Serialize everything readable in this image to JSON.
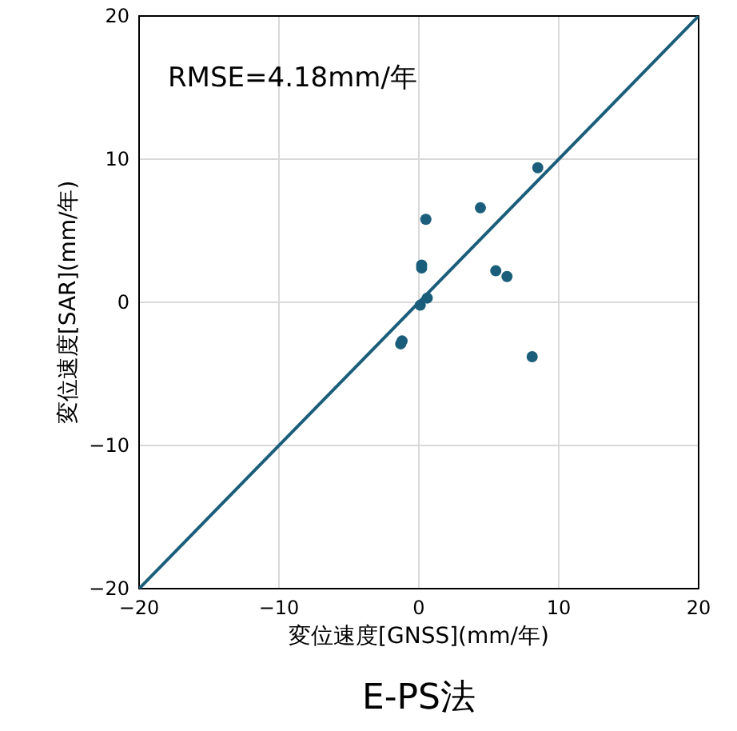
{
  "chart_data": {
    "type": "scatter",
    "title": "E-PS法",
    "xlabel": "変位速度[GNSS](mm/年)",
    "ylabel": "変位速度[SAR](mm/年)",
    "annotations": [
      "RMSE=4.18mm/年"
    ],
    "xlim": [
      -20,
      20
    ],
    "ylim": [
      -20,
      20
    ],
    "xticks": [
      {
        "value": -20,
        "label": "−20"
      },
      {
        "value": -10,
        "label": "−10"
      },
      0,
      10,
      20
    ],
    "yticks": [
      {
        "value": -20,
        "label": "−20"
      },
      {
        "value": -10,
        "label": "−10"
      },
      0,
      10,
      20
    ],
    "grid": true,
    "series": [
      {
        "color": "#1b5e7b",
        "marker": "circle",
        "x": [
          8.5,
          0.5,
          4.4,
          0.2,
          0.2,
          5.5,
          6.3,
          0.6,
          0.1,
          -1.3,
          -1.2,
          8.1
        ],
        "values": [
          9.4,
          5.8,
          6.6,
          2.4,
          2.6,
          2.2,
          1.8,
          0.3,
          -0.2,
          -2.9,
          -2.7,
          -3.8
        ]
      },
      {
        "type": "line",
        "color": "#1b5e7b",
        "x": [
          -20,
          20
        ],
        "values": [
          -20,
          20
        ],
        "marker": "none",
        "line_style": "solid"
      }
    ]
  }
}
